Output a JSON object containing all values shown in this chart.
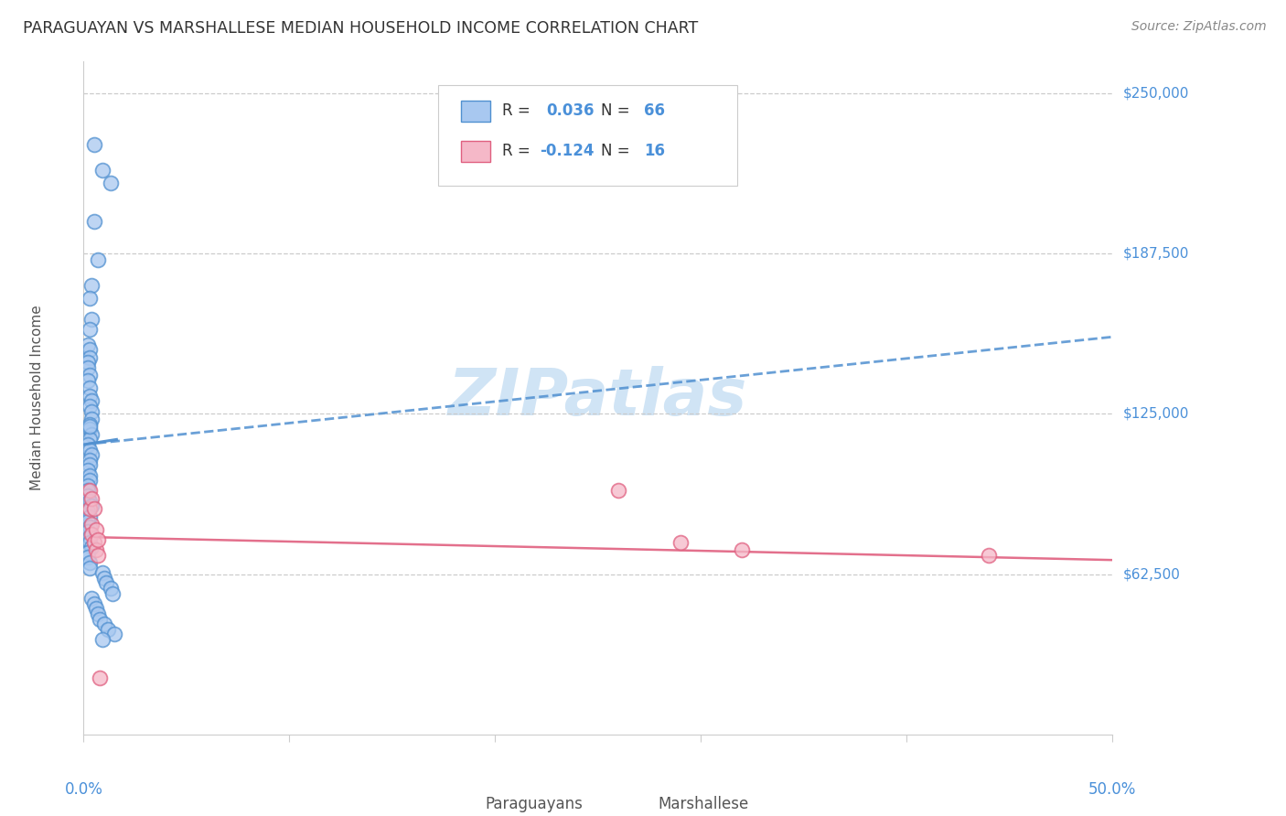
{
  "title": "PARAGUAYAN VS MARSHALLESE MEDIAN HOUSEHOLD INCOME CORRELATION CHART",
  "source": "Source: ZipAtlas.com",
  "ylabel": "Median Household Income",
  "xlim": [
    0.0,
    0.5
  ],
  "ylim": [
    0,
    262500
  ],
  "ytick_vals": [
    62500,
    125000,
    187500,
    250000
  ],
  "ytick_labels": [
    "$62,500",
    "$125,000",
    "$187,500",
    "$250,000"
  ],
  "blue_R": 0.036,
  "blue_N": 66,
  "pink_R": -0.124,
  "pink_N": 16,
  "blue_fill": "#A8C8F0",
  "pink_fill": "#F5B8C8",
  "blue_edge": "#5090D0",
  "pink_edge": "#E06080",
  "blue_trend_color": "#5090D0",
  "pink_trend_color": "#E06080",
  "grid_color": "#CCCCCC",
  "axis_color": "#CCCCCC",
  "label_color": "#4A90D9",
  "watermark_color": "#D0E4F5",
  "blue_trend_x": [
    0.0,
    0.5
  ],
  "blue_trend_y": [
    113000,
    155000
  ],
  "pink_trend_x": [
    0.0,
    0.5
  ],
  "pink_trend_y": [
    77000,
    68000
  ],
  "blue_x": [
    0.005,
    0.009,
    0.013,
    0.005,
    0.007,
    0.004,
    0.003,
    0.004,
    0.003,
    0.002,
    0.003,
    0.003,
    0.002,
    0.002,
    0.003,
    0.002,
    0.003,
    0.003,
    0.004,
    0.003,
    0.004,
    0.004,
    0.003,
    0.003,
    0.004,
    0.003,
    0.002,
    0.003,
    0.004,
    0.003,
    0.003,
    0.002,
    0.003,
    0.003,
    0.002,
    0.002,
    0.002,
    0.003,
    0.004,
    0.003,
    0.002,
    0.003,
    0.002,
    0.003,
    0.002,
    0.003,
    0.003,
    0.004,
    0.002,
    0.002,
    0.003,
    0.003,
    0.009,
    0.01,
    0.011,
    0.013,
    0.014,
    0.004,
    0.005,
    0.006,
    0.007,
    0.008,
    0.01,
    0.012,
    0.015,
    0.009
  ],
  "blue_y": [
    230000,
    220000,
    215000,
    200000,
    185000,
    175000,
    170000,
    162000,
    158000,
    152000,
    150000,
    147000,
    145000,
    143000,
    140000,
    138000,
    135000,
    132000,
    130000,
    128000,
    126000,
    123000,
    121000,
    119000,
    117000,
    115000,
    113000,
    111000,
    109000,
    107000,
    105000,
    103000,
    101000,
    99000,
    97000,
    95000,
    93000,
    91000,
    89000,
    120000,
    87000,
    85000,
    83000,
    81000,
    79000,
    77000,
    75000,
    73000,
    71000,
    69000,
    67000,
    65000,
    63000,
    61000,
    59000,
    57000,
    55000,
    53000,
    51000,
    49000,
    47000,
    45000,
    43000,
    41000,
    39000,
    37000
  ],
  "pink_x": [
    0.003,
    0.003,
    0.004,
    0.004,
    0.004,
    0.005,
    0.005,
    0.006,
    0.006,
    0.007,
    0.007,
    0.008,
    0.26,
    0.29,
    0.32,
    0.44
  ],
  "pink_y": [
    95000,
    88000,
    82000,
    78000,
    92000,
    75000,
    88000,
    72000,
    80000,
    70000,
    76000,
    22000,
    95000,
    75000,
    72000,
    70000
  ]
}
